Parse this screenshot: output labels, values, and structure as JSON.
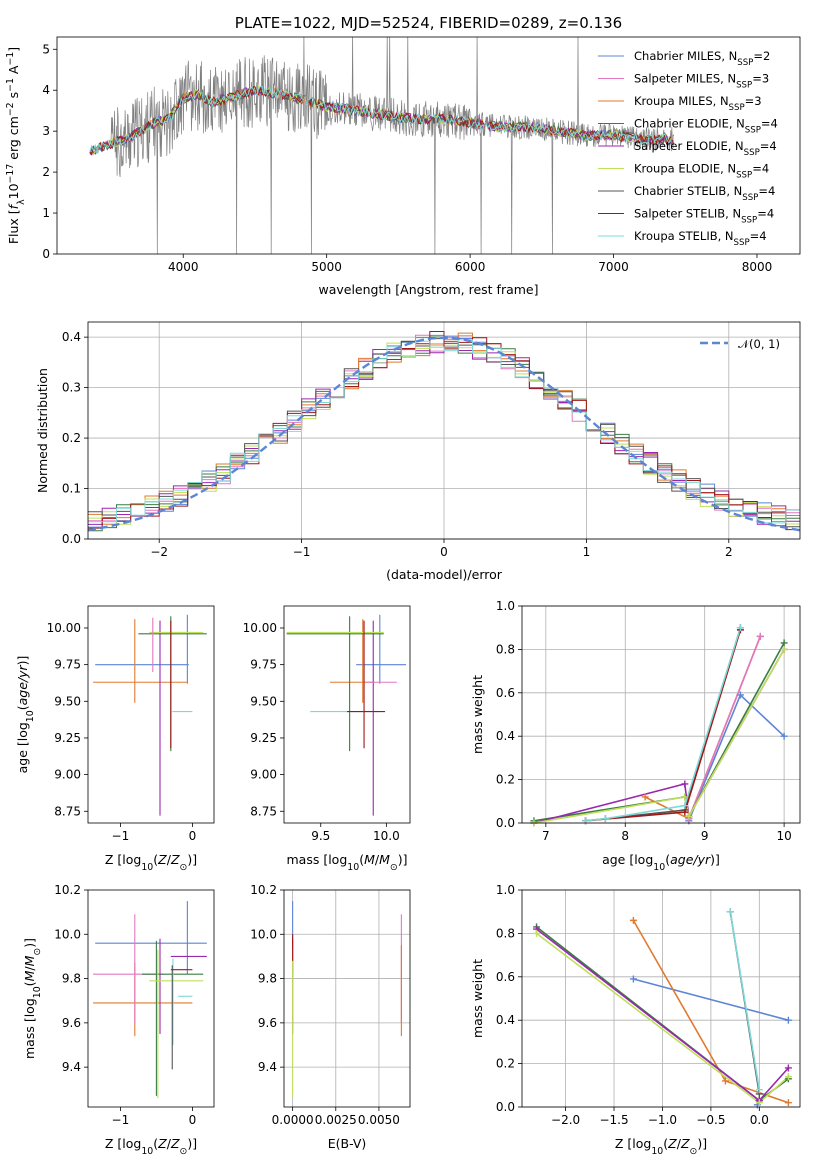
{
  "chart_data": [
    {
      "id": "spectrum",
      "type": "line",
      "title": "PLATE=1022, MJD=52524, FIBERID=0289, z=0.136",
      "xlabel": "wavelength [Angstrom, rest frame]",
      "ylabel": "Flux [fλ10−17 erg cm−2 s−1 A−1]",
      "xlim": [
        3120,
        8300
      ],
      "ylim": [
        0,
        5.3
      ],
      "xticks": [
        4000,
        5000,
        6000,
        7000,
        8000
      ],
      "yticks": [
        0,
        1,
        2,
        3,
        4,
        5
      ],
      "legend_position": "right",
      "legend": [
        {
          "name": "Chabrier MILES, N",
          "sub": "SSP",
          "tail": "=2",
          "color": "#5c85d6"
        },
        {
          "name": "Salpeter MILES, N",
          "sub": "SSP",
          "tail": "=3",
          "color": "#e377c2"
        },
        {
          "name": "Kroupa MILES, N",
          "sub": "SSP",
          "tail": "=3",
          "color": "#e07a2f"
        },
        {
          "name": "Chabrier ELODIE, N",
          "sub": "SSP",
          "tail": "=4",
          "color": "#3a7d44"
        },
        {
          "name": "Salpeter ELODIE, N",
          "sub": "SSP",
          "tail": "=4",
          "color": "#9b27b0"
        },
        {
          "name": "Kroupa ELODIE, N",
          "sub": "SSP",
          "tail": "=4",
          "color": "#bfe05a"
        },
        {
          "name": "Chabrier STELIB, N",
          "sub": "SSP",
          "tail": "=4",
          "color": "#555555"
        },
        {
          "name": "Salpeter STELIB, N",
          "sub": "SSP",
          "tail": "=4",
          "color": "#a01818"
        },
        {
          "name": "Kroupa STELIB, N",
          "sub": "SSP",
          "tail": "=4",
          "color": "#7fd8d8"
        }
      ],
      "data_color": "#7f7f7f",
      "continuum": [
        [
          3350,
          2.5
        ],
        [
          3500,
          2.7
        ],
        [
          3600,
          2.8
        ],
        [
          3700,
          3.0
        ],
        [
          3800,
          3.2
        ],
        [
          3900,
          3.3
        ],
        [
          4000,
          3.8
        ],
        [
          4100,
          3.9
        ],
        [
          4200,
          3.7
        ],
        [
          4300,
          3.8
        ],
        [
          4500,
          4.0
        ],
        [
          4700,
          3.9
        ],
        [
          4900,
          3.7
        ],
        [
          5000,
          3.6
        ],
        [
          5200,
          3.5
        ],
        [
          5400,
          3.4
        ],
        [
          5600,
          3.3
        ],
        [
          5800,
          3.3
        ],
        [
          6000,
          3.2
        ],
        [
          6200,
          3.1
        ],
        [
          6400,
          3.1
        ],
        [
          6600,
          3.0
        ],
        [
          6800,
          2.9
        ],
        [
          7000,
          2.9
        ],
        [
          7200,
          2.8
        ],
        [
          7400,
          2.8
        ]
      ]
    },
    {
      "id": "residuals",
      "type": "line",
      "xlabel": "(data-model)/error",
      "ylabel": "Normed distribution",
      "xlim": [
        -2.5,
        2.5
      ],
      "ylim": [
        0,
        0.43
      ],
      "xticks": [
        -2,
        -1,
        0,
        1,
        2
      ],
      "yticks": [
        0.0,
        0.1,
        0.2,
        0.3,
        0.4
      ],
      "grid": true,
      "legend_position": "top-right",
      "reference_label": "𝒩(0, 1)",
      "reference_color": "#5c85d6"
    },
    {
      "id": "age-vs-Z",
      "type": "scatter",
      "xlabel": "Z [log10(Z/Z⊙)]",
      "ylabel": "age [log10(age/yr)]",
      "xlim": [
        -1.45,
        0.3
      ],
      "ylim": [
        8.67,
        10.15
      ],
      "xticks": [
        -1,
        0
      ],
      "yticks": [
        8.75,
        9.0,
        9.25,
        9.5,
        9.75,
        10.0
      ],
      "errorbars": [
        {
          "x": -0.6,
          "y": 9.75,
          "x0": -1.35,
          "x1": -0.05,
          "y0": 9.75,
          "y1": 9.75,
          "c": "#5c85d6"
        },
        {
          "x": -0.07,
          "y": 9.75,
          "x0": -0.07,
          "x1": -0.07,
          "y0": 9.62,
          "y1": 10.09,
          "c": "#5c85d6"
        },
        {
          "x": -0.8,
          "y": 9.63,
          "x0": -1.38,
          "x1": -0.07,
          "y0": 9.63,
          "y1": 9.63,
          "c": "#e07a2f"
        },
        {
          "x": -0.8,
          "y": 9.63,
          "x0": -0.8,
          "x1": -0.8,
          "y0": 9.49,
          "y1": 10.06,
          "c": "#e07a2f"
        },
        {
          "x": -0.3,
          "y": 9.96,
          "x0": -0.75,
          "x1": 0.2,
          "y0": 9.96,
          "y1": 9.96,
          "c": "#3a7d44"
        },
        {
          "x": -0.3,
          "y": 9.96,
          "x0": -0.3,
          "x1": -0.3,
          "y0": 9.16,
          "y1": 10.08,
          "c": "#3a7d44"
        },
        {
          "x": -0.45,
          "y": 9.96,
          "x0": -0.45,
          "x1": -0.45,
          "y0": 8.72,
          "y1": 10.05,
          "c": "#9b27b0"
        },
        {
          "x": -0.2,
          "y": 9.96,
          "x0": -0.6,
          "x1": 0.15,
          "y0": 9.97,
          "y1": 9.97,
          "c": "#bfe05a"
        },
        {
          "x": -0.25,
          "y": 9.43,
          "x0": -0.28,
          "x1": 0.0,
          "y0": 9.43,
          "y1": 9.43,
          "c": "#7fd8d8"
        },
        {
          "x": -0.55,
          "y": 9.96,
          "x0": -0.55,
          "x1": -0.55,
          "y0": 9.7,
          "y1": 10.07,
          "c": "#e377c2"
        },
        {
          "x": -0.3,
          "y": 9.96,
          "x0": -0.3,
          "x1": -0.3,
          "y0": 9.18,
          "y1": 10.05,
          "c": "#a01818"
        }
      ]
    },
    {
      "id": "age-vs-mass",
      "type": "scatter",
      "xlabel": "mass [log10(M/M⊙)]",
      "ylabel": "",
      "xlim": [
        9.22,
        10.18
      ],
      "ylim": [
        8.67,
        10.15
      ],
      "xticks": [
        9.5,
        10.0
      ],
      "yticks": [
        8.75,
        9.0,
        9.25,
        9.5,
        9.75,
        10.0
      ],
      "errorbars": [
        {
          "x": 9.95,
          "y": 9.75,
          "x0": 9.77,
          "x1": 10.15,
          "y0": 9.75,
          "y1": 9.75,
          "c": "#5c85d6"
        },
        {
          "x": 9.95,
          "y": 9.75,
          "x0": 9.95,
          "x1": 9.95,
          "y0": 9.62,
          "y1": 10.09,
          "c": "#5c85d6"
        },
        {
          "x": 9.69,
          "y": 9.63,
          "x0": 9.57,
          "x1": 9.91,
          "y0": 9.63,
          "y1": 9.63,
          "c": "#e07a2f"
        },
        {
          "x": 9.82,
          "y": 9.63,
          "x0": 9.82,
          "x1": 9.82,
          "y0": 9.49,
          "y1": 10.06,
          "c": "#e07a2f"
        },
        {
          "x": 9.72,
          "y": 9.96,
          "x0": 9.24,
          "x1": 9.98,
          "y0": 9.96,
          "y1": 9.96,
          "c": "#3a7d44"
        },
        {
          "x": 9.72,
          "y": 9.96,
          "x0": 9.72,
          "x1": 9.72,
          "y0": 9.16,
          "y1": 10.08,
          "c": "#3a7d44"
        },
        {
          "x": 9.9,
          "y": 9.96,
          "x0": 9.9,
          "x1": 9.9,
          "y0": 8.72,
          "y1": 10.05,
          "c": "#9b27b0"
        },
        {
          "x": 9.8,
          "y": 9.97,
          "x0": 9.24,
          "x1": 9.98,
          "y0": 9.97,
          "y1": 9.97,
          "c": "#bfe05a"
        },
        {
          "x": 9.7,
          "y": 9.43,
          "x0": 9.42,
          "x1": 9.96,
          "y0": 9.43,
          "y1": 9.43,
          "c": "#7fd8d8"
        },
        {
          "x": 9.85,
          "y": 9.63,
          "x0": 9.85,
          "x1": 10.08,
          "y0": 9.63,
          "y1": 9.63,
          "c": "#e377c2"
        },
        {
          "x": 9.83,
          "y": 9.96,
          "x0": 9.83,
          "x1": 9.83,
          "y0": 9.18,
          "y1": 10.05,
          "c": "#a01818"
        },
        {
          "x": 9.83,
          "y": 9.43,
          "x0": 9.7,
          "x1": 9.99,
          "y0": 9.43,
          "y1": 9.43,
          "c": "#a01818"
        }
      ]
    },
    {
      "id": "massweight-vs-age",
      "type": "line",
      "xlabel": "age [log10(age/yr)]",
      "ylabel": "mass weight",
      "xlim": [
        6.7,
        10.2
      ],
      "ylim": [
        0,
        1.0
      ],
      "xticks": [
        7,
        8,
        9,
        10
      ],
      "yticks": [
        0.0,
        0.2,
        0.4,
        0.6,
        0.8,
        1.0
      ],
      "grid": true,
      "series": [
        {
          "c": "#5c85d6",
          "pts": [
            [
              8.8,
              0.01
            ],
            [
              9.45,
              0.59
            ],
            [
              10.0,
              0.4
            ]
          ]
        },
        {
          "c": "#e07a2f",
          "pts": [
            [
              8.25,
              0.12
            ],
            [
              8.8,
              0.02
            ],
            [
              9.7,
              0.86
            ]
          ]
        },
        {
          "c": "#e377c2",
          "pts": [
            [
              8.8,
              0.02
            ],
            [
              9.7,
              0.86
            ]
          ]
        },
        {
          "c": "#3a7d44",
          "pts": [
            [
              6.85,
              0.01
            ],
            [
              8.75,
              0.12
            ],
            [
              8.8,
              0.03
            ],
            [
              10.0,
              0.83
            ]
          ]
        },
        {
          "c": "#9b27b0",
          "pts": [
            [
              6.85,
              0.0
            ],
            [
              8.75,
              0.18
            ],
            [
              8.8,
              0.03
            ],
            [
              10.0,
              0.8
            ]
          ]
        },
        {
          "c": "#bfe05a",
          "pts": [
            [
              6.85,
              0.0
            ],
            [
              8.75,
              0.12
            ],
            [
              8.8,
              0.03
            ],
            [
              10.0,
              0.8
            ]
          ]
        },
        {
          "c": "#555555",
          "pts": [
            [
              7.5,
              0.01
            ],
            [
              7.75,
              0.02
            ],
            [
              8.75,
              0.06
            ],
            [
              9.45,
              0.9
            ]
          ]
        },
        {
          "c": "#a01818",
          "pts": [
            [
              7.5,
              0.01
            ],
            [
              8.75,
              0.05
            ],
            [
              9.45,
              0.89
            ]
          ]
        },
        {
          "c": "#7fd8d8",
          "pts": [
            [
              7.5,
              0.01
            ],
            [
              7.75,
              0.02
            ],
            [
              8.75,
              0.08
            ],
            [
              9.45,
              0.9
            ]
          ]
        }
      ]
    },
    {
      "id": "mass-vs-Z",
      "type": "scatter",
      "xlabel": "Z [log10(Z/Z⊙)]",
      "ylabel": "mass [log10(M/M⊙)]",
      "xlim": [
        -1.45,
        0.3
      ],
      "ylim": [
        9.22,
        10.2
      ],
      "xticks": [
        -1,
        0
      ],
      "yticks": [
        9.4,
        9.6,
        9.8,
        10.0,
        10.2
      ],
      "errorbars": [
        {
          "x": -0.6,
          "y": 9.95,
          "x0": -1.35,
          "x1": 0.2,
          "y0": 9.96,
          "y1": 9.96,
          "c": "#5c85d6"
        },
        {
          "x": -0.07,
          "y": 9.95,
          "x0": -0.07,
          "x1": -0.07,
          "y0": 9.82,
          "y1": 10.15,
          "c": "#5c85d6"
        },
        {
          "x": -0.8,
          "y": 9.68,
          "x0": -1.38,
          "x1": 0.0,
          "y0": 9.69,
          "y1": 9.69,
          "c": "#e07a2f"
        },
        {
          "x": -0.8,
          "y": 9.68,
          "x0": -0.8,
          "x1": -0.8,
          "y0": 9.54,
          "y1": 9.87,
          "c": "#e07a2f"
        },
        {
          "x": -0.8,
          "y": 9.82,
          "x0": -1.38,
          "x1": -0.4,
          "y0": 9.82,
          "y1": 9.82,
          "c": "#e377c2"
        },
        {
          "x": -0.8,
          "y": 9.82,
          "x0": -0.8,
          "x1": -0.8,
          "y0": 9.6,
          "y1": 10.09,
          "c": "#e377c2"
        },
        {
          "x": -0.5,
          "y": 9.82,
          "x0": -0.7,
          "x1": 0.15,
          "y0": 9.82,
          "y1": 9.82,
          "c": "#3a7d44"
        },
        {
          "x": -0.5,
          "y": 9.82,
          "x0": -0.5,
          "x1": -0.5,
          "y0": 9.27,
          "y1": 9.97,
          "c": "#3a7d44"
        },
        {
          "x": -0.3,
          "y": 9.9,
          "x0": -0.3,
          "x1": 0.2,
          "y0": 9.9,
          "y1": 9.9,
          "c": "#9b27b0"
        },
        {
          "x": -0.45,
          "y": 9.9,
          "x0": -0.45,
          "x1": -0.45,
          "y0": 9.55,
          "y1": 9.98,
          "c": "#9b27b0"
        },
        {
          "x": -0.45,
          "y": 9.79,
          "x0": -0.6,
          "x1": 0.15,
          "y0": 9.79,
          "y1": 9.79,
          "c": "#bfe05a"
        },
        {
          "x": -0.48,
          "y": 9.79,
          "x0": -0.48,
          "x1": -0.48,
          "y0": 9.26,
          "y1": 9.93,
          "c": "#bfe05a"
        },
        {
          "x": -0.2,
          "y": 9.72,
          "x0": -0.2,
          "x1": 0.0,
          "y0": 9.72,
          "y1": 9.72,
          "c": "#7fd8d8"
        },
        {
          "x": -0.27,
          "y": 9.72,
          "x0": -0.27,
          "x1": -0.27,
          "y0": 9.5,
          "y1": 9.89,
          "c": "#7fd8d8"
        },
        {
          "x": -0.3,
          "y": 9.84,
          "x0": -0.3,
          "x1": 0.0,
          "y0": 9.84,
          "y1": 9.84,
          "c": "#a01818"
        },
        {
          "x": -0.28,
          "y": 9.84,
          "x0": -0.28,
          "x1": -0.28,
          "y0": 9.39,
          "y1": 9.86,
          "c": "#555555"
        }
      ]
    },
    {
      "id": "mass-vs-EBV",
      "type": "scatter",
      "xlabel": "E(B-V)",
      "ylabel": "",
      "xlim": [
        -0.0005,
        0.0068
      ],
      "ylim": [
        9.22,
        10.2
      ],
      "xticks": [
        0.0,
        0.0025,
        0.005
      ],
      "xtick_labels": [
        "0.0000",
        "0.0025",
        "0.0050"
      ],
      "yticks": [
        9.4,
        9.6,
        9.8,
        10.0,
        10.2
      ],
      "grid": true,
      "errorbars": [
        {
          "x": 0.0,
          "y": 9.95,
          "x0": 0.0,
          "x1": 0.0,
          "y0": 9.82,
          "y1": 10.15,
          "c": "#5c85d6"
        },
        {
          "x": 0.0,
          "y": 9.9,
          "x0": 0.0,
          "x1": 0.0,
          "y0": 9.55,
          "y1": 9.98,
          "c": "#9b27b0"
        },
        {
          "x": 0.0,
          "y": 9.8,
          "x0": 0.0,
          "x1": 0.0,
          "y0": 9.26,
          "y1": 9.93,
          "c": "#bfe05a"
        },
        {
          "x": 0.0,
          "y": 9.84,
          "x0": 0.0,
          "x1": 0.0,
          "y0": 9.88,
          "y1": 10.0,
          "c": "#a01818"
        },
        {
          "x": 0.0063,
          "y": 9.82,
          "x0": 0.0063,
          "x1": 0.0063,
          "y0": 9.6,
          "y1": 10.09,
          "c": "#e377c2"
        },
        {
          "x": 0.0063,
          "y": 9.68,
          "x0": 0.0063,
          "x1": 0.0063,
          "y0": 9.54,
          "y1": 9.95,
          "c": "#e07a2f"
        }
      ]
    },
    {
      "id": "massweight-vs-Z",
      "type": "line",
      "xlabel": "Z [log10(Z/Z⊙)]",
      "ylabel": "mass weight",
      "xlim": [
        -2.45,
        0.42
      ],
      "ylim": [
        0,
        1.0
      ],
      "xticks": [
        -2.0,
        -1.5,
        -1.0,
        -0.5,
        0.0
      ],
      "xtick_labels": [
        "−2.0",
        "−1.5",
        "−1.0",
        "−0.5",
        "0.0"
      ],
      "yticks": [
        0.0,
        0.2,
        0.4,
        0.6,
        0.8,
        1.0
      ],
      "grid": true,
      "series": [
        {
          "c": "#5c85d6",
          "pts": [
            [
              -1.3,
              0.59
            ],
            [
              0.3,
              0.4
            ]
          ]
        },
        {
          "c": "#5c85d6",
          "pts": [
            [
              -0.02,
              0.01
            ],
            [
              0.0,
              0.03
            ]
          ]
        },
        {
          "c": "#e07a2f",
          "pts": [
            [
              -1.3,
              0.86
            ],
            [
              -0.35,
              0.12
            ],
            [
              0.3,
              0.02
            ]
          ]
        },
        {
          "c": "#3a7d44",
          "pts": [
            [
              -2.3,
              0.83
            ],
            [
              0.0,
              0.03
            ],
            [
              0.3,
              0.13
            ]
          ]
        },
        {
          "c": "#9b27b0",
          "pts": [
            [
              -2.3,
              0.82
            ],
            [
              0.0,
              0.03
            ],
            [
              0.3,
              0.18
            ]
          ]
        },
        {
          "c": "#bfe05a",
          "pts": [
            [
              -2.3,
              0.8
            ],
            [
              0.0,
              0.02
            ],
            [
              0.3,
              0.14
            ]
          ]
        },
        {
          "c": "#555555",
          "pts": [
            [
              -0.3,
              0.9
            ],
            [
              0.0,
              0.06
            ]
          ]
        },
        {
          "c": "#7fd8d8",
          "pts": [
            [
              -0.3,
              0.9
            ],
            [
              0.0,
              0.08
            ]
          ]
        }
      ]
    }
  ]
}
